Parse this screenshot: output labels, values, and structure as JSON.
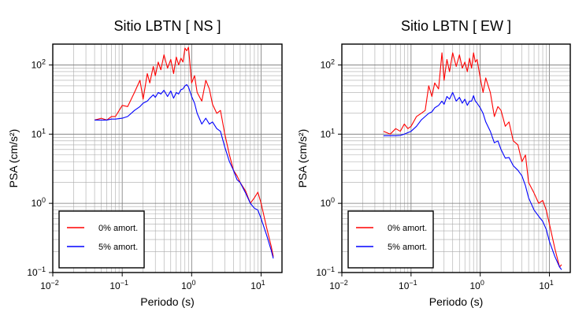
{
  "chart_data": [
    {
      "type": "line",
      "title": "Sitio LBTN [ NS ]",
      "xlabel": "Periodo (s)",
      "ylabel": "PSA (cm/s²)",
      "xscale": "log",
      "yscale": "log",
      "xlim": [
        0.01,
        20
      ],
      "ylim": [
        0.1,
        200
      ],
      "grid": true,
      "legend_position": "bottom-left",
      "x_ticks": [
        {
          "base": "10",
          "exp": "−2"
        },
        {
          "base": "10",
          "exp": "−1"
        },
        {
          "base": "10",
          "exp": "0"
        },
        {
          "base": "10",
          "exp": "1"
        }
      ],
      "y_ticks": [
        {
          "base": "10",
          "exp": "−1"
        },
        {
          "base": "10",
          "exp": "0"
        },
        {
          "base": "10",
          "exp": "1"
        },
        {
          "base": "10",
          "exp": "2"
        }
      ],
      "series": [
        {
          "name": "0% amort.",
          "color": "#ff0000",
          "x": [
            0.04,
            0.05,
            0.06,
            0.07,
            0.08,
            0.1,
            0.12,
            0.15,
            0.18,
            0.2,
            0.23,
            0.25,
            0.28,
            0.3,
            0.33,
            0.36,
            0.4,
            0.45,
            0.5,
            0.55,
            0.6,
            0.65,
            0.7,
            0.75,
            0.8,
            0.85,
            0.9,
            1.0,
            1.1,
            1.2,
            1.4,
            1.6,
            1.8,
            2.0,
            2.3,
            2.6,
            3.0,
            3.5,
            4.0,
            4.5,
            5.0,
            6.0,
            7.0,
            8.0,
            9.0,
            10.0,
            12.0,
            14.0,
            15.0
          ],
          "y": [
            16,
            17,
            16,
            18,
            18,
            26,
            25,
            40,
            60,
            32,
            75,
            55,
            95,
            70,
            110,
            85,
            140,
            90,
            120,
            75,
            130,
            100,
            125,
            110,
            175,
            160,
            180,
            55,
            70,
            40,
            30,
            60,
            45,
            27,
            20,
            22,
            10,
            5,
            3,
            2.5,
            2,
            1.5,
            1.0,
            1.2,
            1.45,
            1.0,
            0.45,
            0.24,
            0.17
          ]
        },
        {
          "name": "5% amort.",
          "color": "#0000ff",
          "x": [
            0.04,
            0.05,
            0.06,
            0.07,
            0.08,
            0.1,
            0.12,
            0.15,
            0.18,
            0.2,
            0.23,
            0.25,
            0.28,
            0.3,
            0.33,
            0.36,
            0.4,
            0.45,
            0.5,
            0.55,
            0.6,
            0.65,
            0.7,
            0.75,
            0.8,
            0.85,
            0.9,
            1.0,
            1.1,
            1.2,
            1.4,
            1.6,
            1.8,
            2.0,
            2.3,
            2.6,
            3.0,
            3.5,
            4.0,
            4.5,
            5.0,
            6.0,
            7.0,
            8.0,
            9.0,
            10.0,
            12.0,
            14.0,
            15.0
          ],
          "y": [
            16,
            16,
            16,
            16.5,
            16.5,
            17,
            18,
            22,
            25,
            28,
            30,
            33,
            37,
            34,
            40,
            38,
            43,
            35,
            42,
            33,
            40,
            38,
            44,
            45,
            50,
            52,
            48,
            35,
            28,
            20,
            14,
            17,
            14,
            15,
            12,
            11,
            6.5,
            4,
            3,
            2.2,
            2.0,
            1.4,
            1.0,
            0.85,
            0.8,
            0.6,
            0.35,
            0.21,
            0.16
          ]
        }
      ]
    },
    {
      "type": "line",
      "title": "Sitio LBTN [ EW ]",
      "xlabel": "Periodo (s)",
      "ylabel": "PSA (cm/s²)",
      "xscale": "log",
      "yscale": "log",
      "xlim": [
        0.01,
        20
      ],
      "ylim": [
        0.1,
        200
      ],
      "grid": true,
      "legend_position": "bottom-left",
      "x_ticks": [
        {
          "base": "10",
          "exp": "−2"
        },
        {
          "base": "10",
          "exp": "−1"
        },
        {
          "base": "10",
          "exp": "0"
        },
        {
          "base": "10",
          "exp": "1"
        }
      ],
      "y_ticks": [
        {
          "base": "10",
          "exp": "−1"
        },
        {
          "base": "10",
          "exp": "0"
        },
        {
          "base": "10",
          "exp": "1"
        },
        {
          "base": "10",
          "exp": "2"
        }
      ],
      "series": [
        {
          "name": "0% amort.",
          "color": "#ff0000",
          "x": [
            0.04,
            0.05,
            0.06,
            0.07,
            0.08,
            0.09,
            0.1,
            0.12,
            0.14,
            0.16,
            0.18,
            0.2,
            0.22,
            0.25,
            0.28,
            0.3,
            0.33,
            0.36,
            0.4,
            0.45,
            0.5,
            0.55,
            0.6,
            0.65,
            0.7,
            0.75,
            0.8,
            0.85,
            0.9,
            1.0,
            1.1,
            1.2,
            1.4,
            1.6,
            1.8,
            2.0,
            2.3,
            2.6,
            3.0,
            3.5,
            4.0,
            4.5,
            5.0,
            6.0,
            7.0,
            8.0,
            9.0,
            10.0,
            12.0,
            14.0,
            15.0
          ],
          "y": [
            11,
            10,
            12,
            11,
            14,
            12,
            13,
            18,
            20,
            22,
            50,
            35,
            55,
            45,
            150,
            60,
            120,
            80,
            150,
            95,
            140,
            90,
            110,
            80,
            125,
            90,
            150,
            110,
            120,
            65,
            40,
            65,
            40,
            18,
            25,
            22,
            13,
            15,
            8,
            7,
            4,
            5,
            2,
            1.4,
            1.0,
            1.1,
            0.8,
            0.5,
            0.22,
            0.12,
            0.13
          ]
        },
        {
          "name": "5% amort.",
          "color": "#0000ff",
          "x": [
            0.04,
            0.05,
            0.06,
            0.07,
            0.08,
            0.09,
            0.1,
            0.12,
            0.14,
            0.16,
            0.18,
            0.2,
            0.22,
            0.25,
            0.28,
            0.3,
            0.33,
            0.36,
            0.4,
            0.45,
            0.5,
            0.55,
            0.6,
            0.65,
            0.7,
            0.75,
            0.8,
            0.85,
            0.9,
            1.0,
            1.1,
            1.2,
            1.4,
            1.6,
            1.8,
            2.0,
            2.3,
            2.6,
            3.0,
            3.5,
            4.0,
            4.5,
            5.0,
            6.0,
            7.0,
            8.0,
            9.0,
            10.0,
            12.0,
            14.0,
            15.0
          ],
          "y": [
            9.5,
            9.5,
            9.5,
            9.6,
            10,
            10.5,
            11,
            13,
            16,
            18,
            20,
            21,
            24,
            26,
            30,
            27,
            35,
            32,
            40,
            30,
            34,
            28,
            32,
            26,
            30,
            30,
            36,
            30,
            28,
            24,
            20,
            15,
            11,
            7.5,
            8,
            6,
            4.5,
            4.6,
            3.5,
            3,
            2.5,
            1.8,
            1.2,
            0.8,
            0.65,
            0.55,
            0.42,
            0.28,
            0.17,
            0.12,
            0.11
          ]
        }
      ]
    }
  ]
}
